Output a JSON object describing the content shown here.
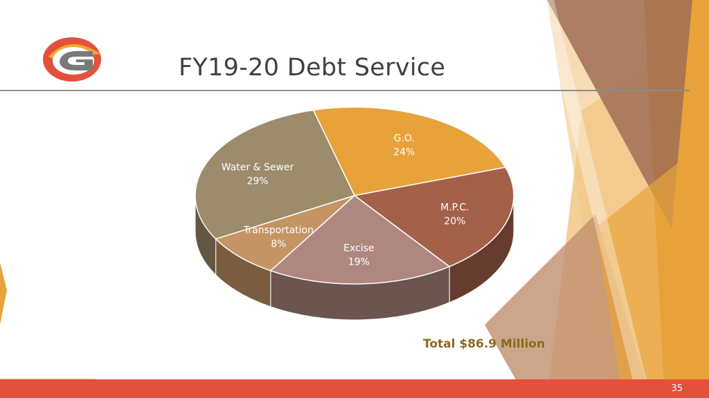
{
  "slide": {
    "title": "FY19-20 Debt Service",
    "total": "Total $86.9 Million",
    "page_number": "35"
  },
  "colors": {
    "accent_orange": "#e8a23a",
    "footer_red": "#e3503c",
    "total_text": "#8a6a1e"
  },
  "logo": {
    "icon": "g-logo-icon"
  },
  "chart_data": {
    "type": "pie",
    "style": "3d",
    "title": "",
    "slices": [
      {
        "label": "G.O.",
        "value": 24,
        "display": "24%",
        "color": "#e8a23a"
      },
      {
        "label": "M.P.C.",
        "value": 20,
        "display": "20%",
        "color": "#a3614a"
      },
      {
        "label": "Excise",
        "value": 19,
        "display": "19%",
        "color": "#ae8880"
      },
      {
        "label": "Transportation",
        "value": 8,
        "display": "8%",
        "color": "#c49465"
      },
      {
        "label": "Water & Sewer",
        "value": 29,
        "display": "29%",
        "color": "#9c8c6c"
      }
    ]
  }
}
